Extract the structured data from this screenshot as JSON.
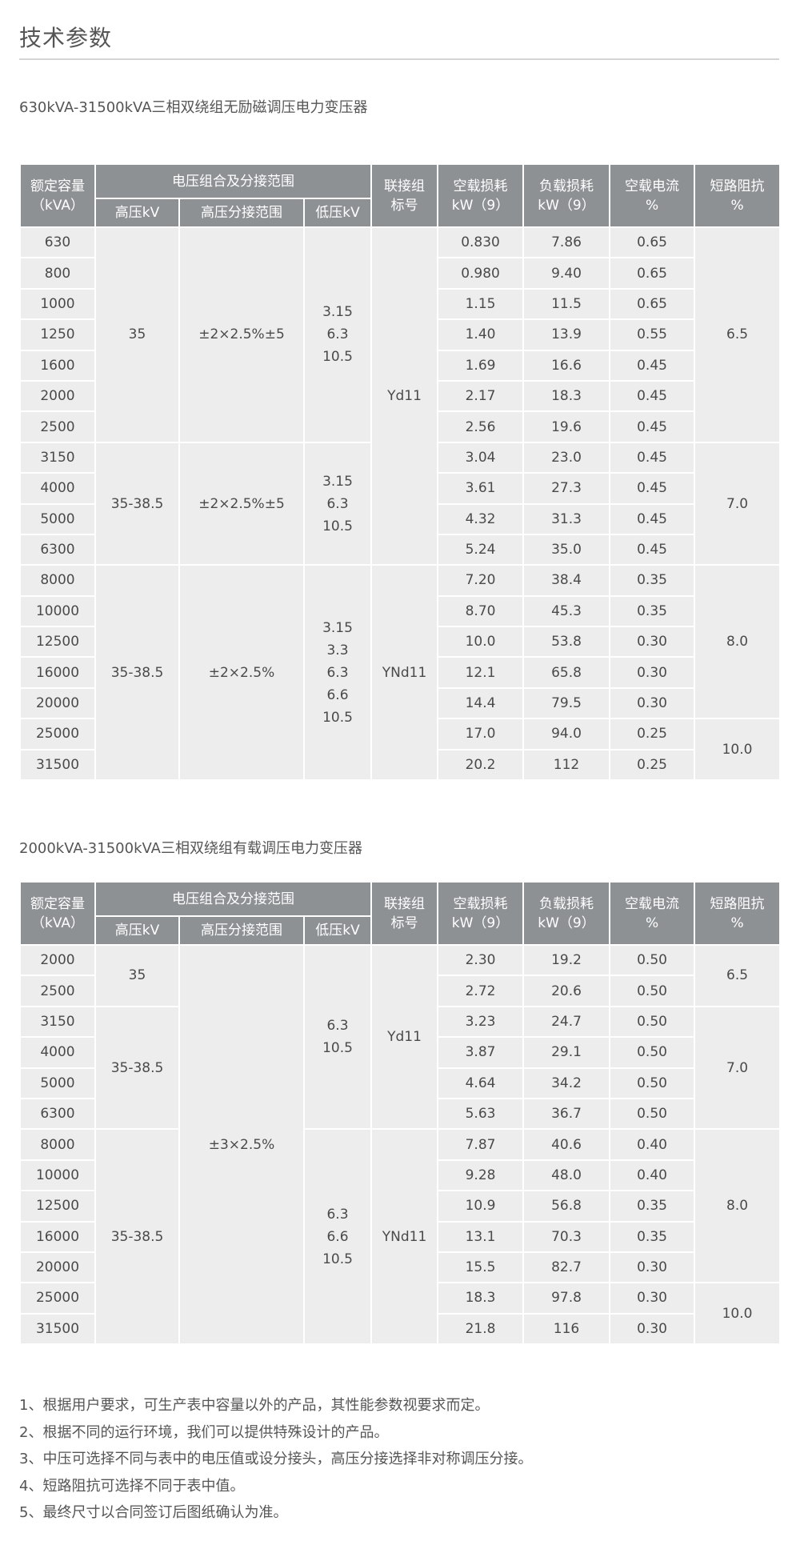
{
  "page_title": "技术参数",
  "header_labels": {
    "capacity": [
      "额定容量",
      "（kVA）"
    ],
    "voltage_group": "电压组合及分接范围",
    "hv": "高压kV",
    "tap": "高压分接范围",
    "lv": "低压kV",
    "vector": [
      "联接组",
      "标号"
    ],
    "no_load_loss": [
      "空载损耗",
      "kW（9）"
    ],
    "load_loss": [
      "负载损耗",
      "kW（9）"
    ],
    "no_load_current": [
      "空载电流",
      "%"
    ],
    "impedance": [
      "短路阻抗",
      "%"
    ]
  },
  "tables": [
    {
      "title": "630kVA-31500kVA三相双绕组无励磁调压电力变压器",
      "rows": [
        [
          "630",
          "0.830",
          "7.86",
          "0.65"
        ],
        [
          "800",
          "0.980",
          "9.40",
          "0.65"
        ],
        [
          "1000",
          "1.15",
          "11.5",
          "0.65"
        ],
        [
          "1250",
          "1.40",
          "13.9",
          "0.55"
        ],
        [
          "1600",
          "1.69",
          "16.6",
          "0.45"
        ],
        [
          "2000",
          "2.17",
          "18.3",
          "0.45"
        ],
        [
          "2500",
          "2.56",
          "19.6",
          "0.45"
        ],
        [
          "3150",
          "3.04",
          "23.0",
          "0.45"
        ],
        [
          "4000",
          "3.61",
          "27.3",
          "0.45"
        ],
        [
          "5000",
          "4.32",
          "31.3",
          "0.45"
        ],
        [
          "6300",
          "5.24",
          "35.0",
          "0.45"
        ],
        [
          "8000",
          "7.20",
          "38.4",
          "0.35"
        ],
        [
          "10000",
          "8.70",
          "45.3",
          "0.35"
        ],
        [
          "12500",
          "10.0",
          "53.8",
          "0.30"
        ],
        [
          "16000",
          "12.1",
          "65.8",
          "0.30"
        ],
        [
          "20000",
          "14.4",
          "79.5",
          "0.30"
        ],
        [
          "25000",
          "17.0",
          "94.0",
          "0.25"
        ],
        [
          "31500",
          "20.2",
          "112",
          "0.25"
        ]
      ],
      "hv": [
        {
          "value": [
            "35"
          ],
          "rows": 7
        },
        {
          "value": [
            "35-38.5"
          ],
          "rows": 4
        },
        {
          "value": [
            "35-38.5"
          ],
          "rows": 7
        }
      ],
      "tap": [
        {
          "value": [
            "±2×2.5%±5"
          ],
          "rows": 7
        },
        {
          "value": [
            "±2×2.5%±5"
          ],
          "rows": 4
        },
        {
          "value": [
            "±2×2.5%"
          ],
          "rows": 7
        }
      ],
      "lv": [
        {
          "value": [
            "3.15",
            "6.3",
            "10.5"
          ],
          "rows": 7
        },
        {
          "value": [
            "3.15",
            "6.3",
            "10.5"
          ],
          "rows": 4
        },
        {
          "value": [
            "3.15",
            "3.3",
            "6.3",
            "6.6",
            "10.5"
          ],
          "rows": 7
        }
      ],
      "vector": [
        {
          "value": [
            "Yd11"
          ],
          "rows": 11
        },
        {
          "value": [
            "YNd11"
          ],
          "rows": 7
        }
      ],
      "impedance": [
        {
          "value": [
            "6.5"
          ],
          "rows": 7
        },
        {
          "value": [
            "7.0"
          ],
          "rows": 4
        },
        {
          "value": [
            "8.0"
          ],
          "rows": 5
        },
        {
          "value": [
            "10.0"
          ],
          "rows": 2
        }
      ]
    },
    {
      "title": "2000kVA-31500kVA三相双绕组有载调压电力变压器",
      "rows": [
        [
          "2000",
          "2.30",
          "19.2",
          "0.50"
        ],
        [
          "2500",
          "2.72",
          "20.6",
          "0.50"
        ],
        [
          "3150",
          "3.23",
          "24.7",
          "0.50"
        ],
        [
          "4000",
          "3.87",
          "29.1",
          "0.50"
        ],
        [
          "5000",
          "4.64",
          "34.2",
          "0.50"
        ],
        [
          "6300",
          "5.63",
          "36.7",
          "0.50"
        ],
        [
          "8000",
          "7.87",
          "40.6",
          "0.40"
        ],
        [
          "10000",
          "9.28",
          "48.0",
          "0.40"
        ],
        [
          "12500",
          "10.9",
          "56.8",
          "0.35"
        ],
        [
          "16000",
          "13.1",
          "70.3",
          "0.35"
        ],
        [
          "20000",
          "15.5",
          "82.7",
          "0.30"
        ],
        [
          "25000",
          "18.3",
          "97.8",
          "0.30"
        ],
        [
          "31500",
          "21.8",
          "116",
          "0.30"
        ]
      ],
      "hv": [
        {
          "value": [
            "35"
          ],
          "rows": 2
        },
        {
          "value": [
            "35-38.5"
          ],
          "rows": 4
        },
        {
          "value": [
            "35-38.5"
          ],
          "rows": 7
        }
      ],
      "tap": [
        {
          "value": [
            "±3×2.5%"
          ],
          "rows": 13
        }
      ],
      "lv": [
        {
          "value": [
            "6.3",
            "10.5"
          ],
          "rows": 6
        },
        {
          "value": [
            "6.3",
            "6.6",
            "10.5"
          ],
          "rows": 7
        }
      ],
      "vector": [
        {
          "value": [
            "Yd11"
          ],
          "rows": 6
        },
        {
          "value": [
            "YNd11"
          ],
          "rows": 7
        }
      ],
      "impedance": [
        {
          "value": [
            "6.5"
          ],
          "rows": 2
        },
        {
          "value": [
            "7.0"
          ],
          "rows": 4
        },
        {
          "value": [
            "8.0"
          ],
          "rows": 5
        },
        {
          "value": [
            "10.0"
          ],
          "rows": 2
        }
      ]
    }
  ],
  "notes": [
    "1、根据用户要求，可生产表中容量以外的产品，其性能参数视要求而定。",
    "2、根据不同的运行环境，我们可以提供特殊设计的产品。",
    "3、中压可选择不同与表中的电压值或设分接头，高压分接选择非对称调压分接。",
    "4、短路阻抗可选择不同于表中值。",
    "5、最终尺寸以合同签订后图纸确认为准。"
  ]
}
